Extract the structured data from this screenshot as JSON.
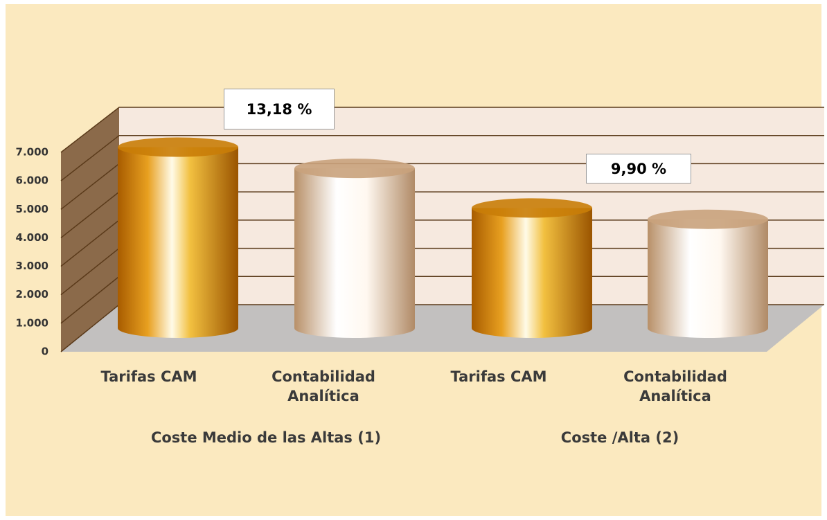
{
  "chart_data": {
    "type": "cylinder",
    "categories": [
      "Tarifas CAM",
      "Contabilidad Analítica",
      "Tarifas CAM",
      "Contabilidad Analítica"
    ],
    "values": [
      6400,
      5650,
      4250,
      3850
    ],
    "colors": [
      "#c97d08",
      "#c9a27c",
      "#c97d08",
      "#c9a27c"
    ],
    "groups": [
      {
        "label": "Coste Medio de las Altas (1)",
        "annotation": "13,18 %"
      },
      {
        "label": "Coste /Alta (2)",
        "annotation": "9,90 %"
      }
    ],
    "ylim": [
      0,
      7000
    ],
    "yticks": [
      0,
      {
        "value": 1000,
        "label": "1.000"
      },
      {
        "value": 2000,
        "label": "2.000"
      },
      {
        "value": 3000,
        "label": "3.000"
      },
      {
        "value": 4000,
        "label": "4.000"
      },
      {
        "value": 5000,
        "label": "5.000"
      },
      {
        "value": 6000,
        "label": "6.000"
      },
      {
        "value": 7000,
        "label": "7.000"
      }
    ],
    "grid": true
  }
}
